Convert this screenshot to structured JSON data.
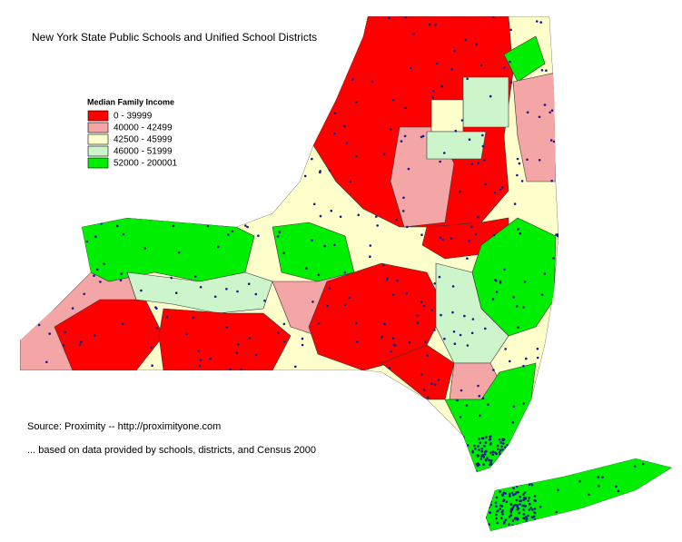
{
  "title": "New York State Public Schools and Unified School Districts",
  "legend": {
    "title": "Median Family Income",
    "items": [
      {
        "label": "0 - 39999",
        "color": "#ff0000"
      },
      {
        "label": "40000 - 42499",
        "color": "#f4a6a6"
      },
      {
        "label": "42500 - 45999",
        "color": "#ffffcc"
      },
      {
        "label": "46000 - 51999",
        "color": "#ccf5cc"
      },
      {
        "label": "52000 - 200001",
        "color": "#00ee00"
      }
    ]
  },
  "source": "Source: Proximity -- http://proximityone.com",
  "note": "... based on data provided by schools, districts, and Census 2000"
}
